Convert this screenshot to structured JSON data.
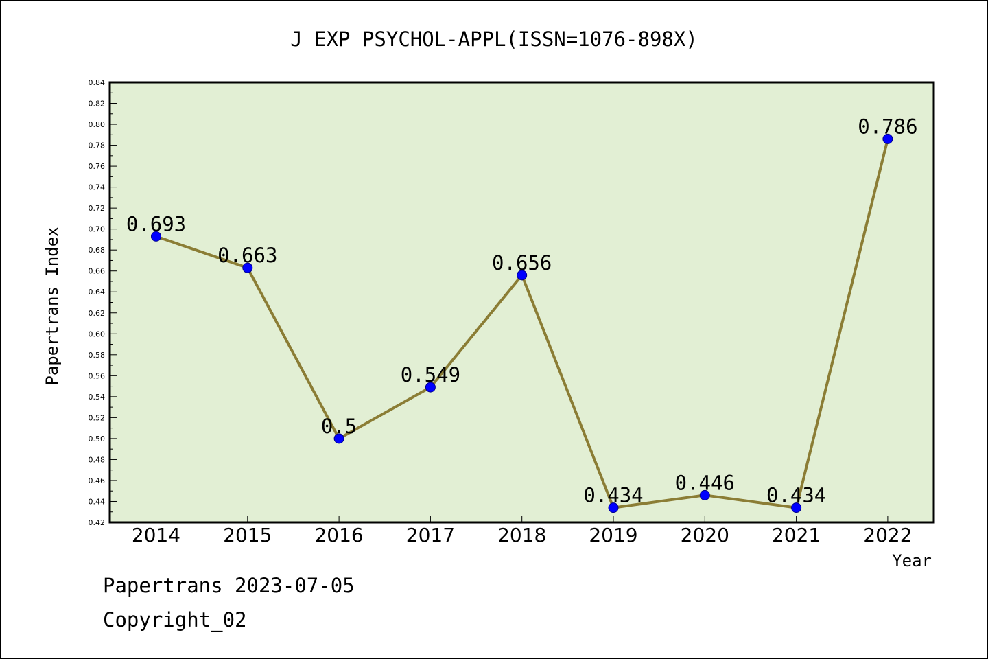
{
  "chart_data": {
    "type": "line",
    "title": "J EXP PSYCHOL-APPL(ISSN=1076-898X)",
    "xlabel": "Year",
    "ylabel": "Papertrans Index",
    "categories": [
      "2014",
      "2015",
      "2016",
      "2017",
      "2018",
      "2019",
      "2020",
      "2021",
      "2022"
    ],
    "series": [
      {
        "values": [
          0.693,
          0.663,
          0.5,
          0.549,
          0.656,
          0.434,
          0.446,
          0.434,
          0.786
        ],
        "labels": [
          "0.693",
          "0.663",
          "0.5",
          "0.549",
          "0.656",
          "0.434",
          "0.446",
          "0.434",
          "0.786"
        ]
      }
    ],
    "ylim": [
      0.42,
      0.84
    ],
    "ytick_step": 0.02,
    "yticks": [
      "0.42",
      "0.44",
      "0.46",
      "0.48",
      "0.50",
      "0.52",
      "0.54",
      "0.56",
      "0.58",
      "0.60",
      "0.62",
      "0.64",
      "0.66",
      "0.68",
      "0.70",
      "0.72",
      "0.74",
      "0.76",
      "0.78",
      "0.80",
      "0.82",
      "0.84"
    ],
    "grid": false,
    "plot_background": "#e2efd4",
    "line_color": "#8b7d35",
    "marker_color": "#0000ff"
  },
  "footer": {
    "date_line": "Papertrans 2023-07-05",
    "copyright": "Copyright_02"
  }
}
